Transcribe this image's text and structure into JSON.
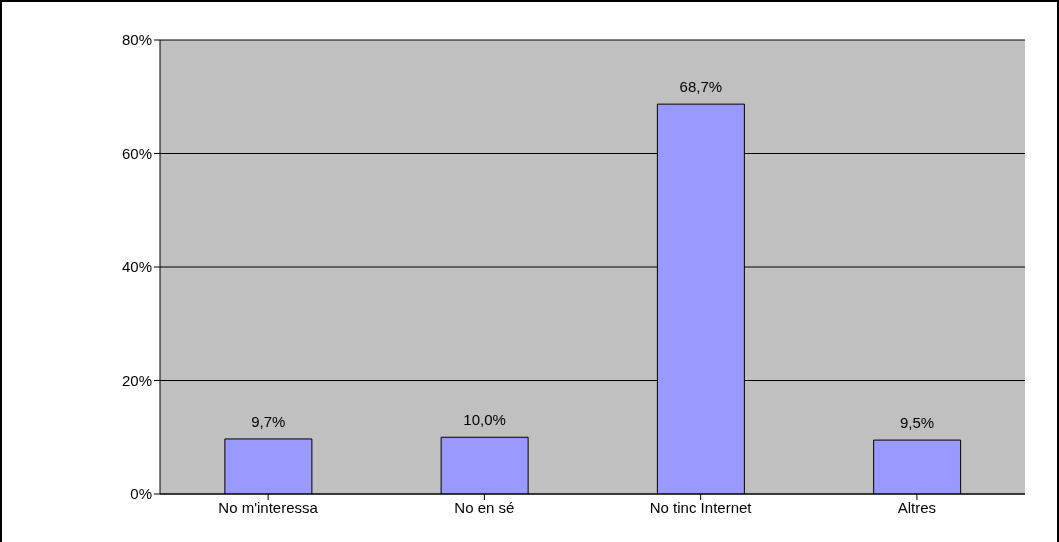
{
  "chart_data": {
    "type": "bar",
    "categories": [
      "No m'interessa",
      "No en sé",
      "No tinc Internet",
      "Altres"
    ],
    "values": [
      9.7,
      10.0,
      68.7,
      9.5
    ],
    "value_labels": [
      "9,7%",
      "10,0%",
      "68,7%",
      "9,5%"
    ],
    "color": "#9999ff",
    "ylim": [
      0,
      80
    ],
    "yticks": [
      {
        "value": 0,
        "label": "0%"
      },
      {
        "value": 20,
        "label": "20%"
      },
      {
        "value": 40,
        "label": "40%"
      },
      {
        "value": 60,
        "label": "60%"
      },
      {
        "value": 80,
        "label": "80%"
      }
    ],
    "grid": "y",
    "legend": false
  }
}
